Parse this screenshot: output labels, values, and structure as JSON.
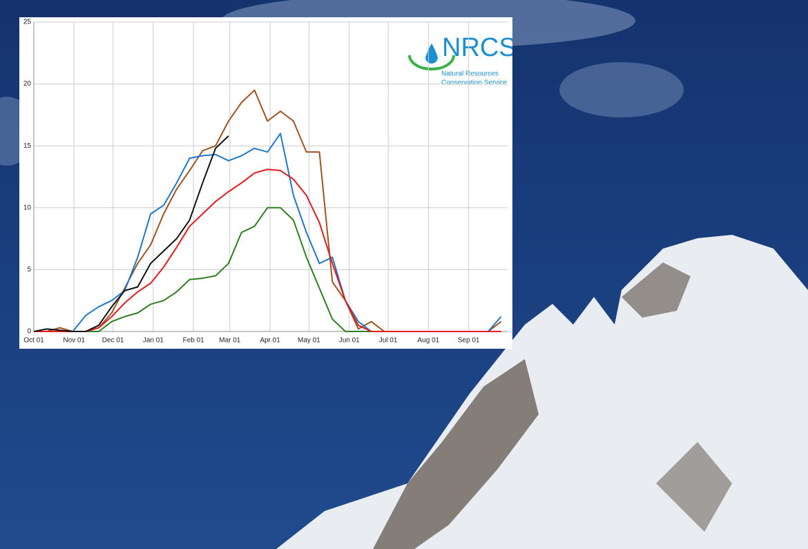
{
  "chart_data": {
    "type": "line",
    "x": [
      0,
      10,
      20,
      30,
      40,
      50,
      60,
      70,
      80,
      90,
      100,
      110,
      120,
      130,
      140,
      150,
      160,
      170,
      180,
      190,
      200,
      210,
      220,
      230,
      240,
      250,
      260,
      270,
      280,
      290,
      300,
      310,
      320,
      330,
      340,
      350,
      360
    ],
    "xlim": [
      0,
      365
    ],
    "xticks": [
      {
        "value": 0,
        "label": "Oct 01"
      },
      {
        "value": 31,
        "label": "Nov 01"
      },
      {
        "value": 61,
        "label": "Dec 01"
      },
      {
        "value": 92,
        "label": "Jan 01"
      },
      {
        "value": 123,
        "label": "Feb 01"
      },
      {
        "value": 151,
        "label": "Mar 01"
      },
      {
        "value": 182,
        "label": "Apr 01"
      },
      {
        "value": 212,
        "label": "May 01"
      },
      {
        "value": 243,
        "label": "Jun 01"
      },
      {
        "value": 273,
        "label": "Jul 01"
      },
      {
        "value": 304,
        "label": "Aug 01"
      },
      {
        "value": 335,
        "label": "Sep 01"
      }
    ],
    "ylim": [
      0,
      25
    ],
    "yticks": [
      0,
      5,
      10,
      15,
      20,
      25
    ],
    "grid": true,
    "series": [
      {
        "color": "#2e7d1e",
        "values": [
          0,
          0,
          0,
          0,
          0,
          0,
          0.8,
          1.2,
          1.5,
          2.2,
          2.5,
          3.2,
          4.2,
          4.3,
          4.5,
          5.5,
          8,
          8.5,
          10,
          10,
          9,
          6,
          3.5,
          1,
          0,
          0,
          0,
          0,
          0,
          0,
          0,
          0,
          0,
          0,
          0,
          0,
          0
        ]
      },
      {
        "color": "#a0521e",
        "values": [
          0,
          0,
          0.3,
          0,
          0,
          0.3,
          1.5,
          3.5,
          5.5,
          7,
          9.5,
          11.5,
          13,
          14.6,
          15,
          17,
          18.5,
          19.5,
          17,
          17.8,
          17,
          14.5,
          14.5,
          4,
          2.5,
          0.2,
          0.8,
          0,
          0,
          0,
          0,
          0,
          0,
          0,
          0,
          0,
          0.8
        ]
      },
      {
        "color": "#1f77cc",
        "values": [
          0,
          0,
          0,
          0,
          1.3,
          2,
          2.5,
          3.3,
          6,
          9.5,
          10.2,
          12,
          14,
          14.2,
          14.3,
          13.8,
          14.2,
          14.8,
          14.5,
          16,
          11,
          8,
          5.5,
          6,
          2.5,
          0.8,
          0,
          0,
          0,
          0,
          0,
          0,
          0,
          0,
          0,
          0,
          1.2
        ]
      },
      {
        "color": "#e31a1c",
        "values": [
          0,
          0,
          0,
          0,
          0,
          0.3,
          1.2,
          2.3,
          3.2,
          3.9,
          5.2,
          6.8,
          8.5,
          9.5,
          10.5,
          11.3,
          12,
          12.8,
          13.1,
          13,
          12.3,
          11,
          8.8,
          5.5,
          2.5,
          0.5,
          0,
          0,
          0,
          0,
          0,
          0,
          0,
          0,
          0,
          0,
          0
        ]
      },
      {
        "color": "#111111",
        "values": [
          0,
          0.2,
          0.1,
          0,
          0,
          0.5,
          2,
          3.3,
          3.6,
          5.5,
          6.5,
          7.5,
          9,
          12,
          14.8,
          15.8,
          null,
          null,
          null,
          null,
          null,
          null,
          null,
          null,
          null,
          null,
          null,
          null,
          null,
          null,
          null,
          null,
          null,
          null,
          null,
          null,
          null
        ]
      }
    ]
  },
  "logo": {
    "name": "NRCS",
    "line1": "Natural Resources",
    "line2": "Conservation Service"
  }
}
